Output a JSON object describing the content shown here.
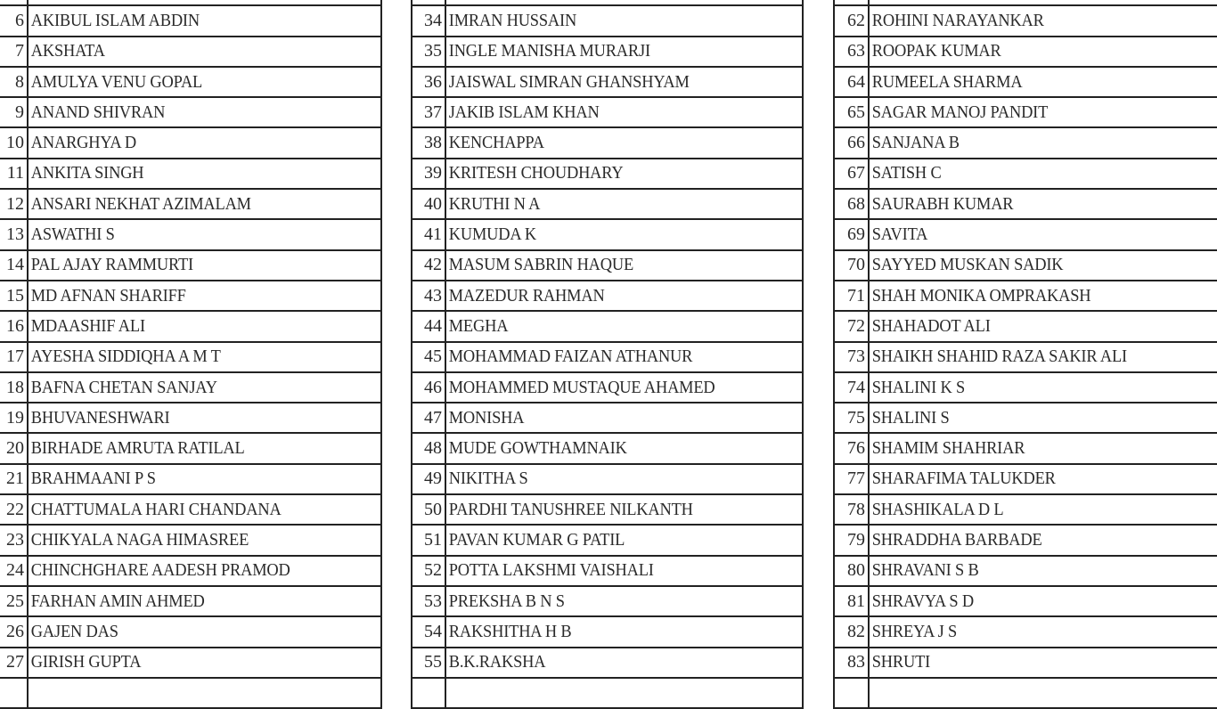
{
  "tables": [
    {
      "rows": [
        {
          "no": "",
          "name": ""
        },
        {
          "no": "6",
          "name": "AKIBUL ISLAM ABDIN"
        },
        {
          "no": "7",
          "name": "AKSHATA"
        },
        {
          "no": "8",
          "name": "AMULYA VENU GOPAL"
        },
        {
          "no": "9",
          "name": "ANAND SHIVRAN"
        },
        {
          "no": "10",
          "name": "ANARGHYA D"
        },
        {
          "no": "11",
          "name": "ANKITA SINGH"
        },
        {
          "no": "12",
          "name": "ANSARI NEKHAT AZIMALAM"
        },
        {
          "no": "13",
          "name": "ASWATHI S"
        },
        {
          "no": "14",
          "name": "PAL AJAY RAMMURTI"
        },
        {
          "no": "15",
          "name": "MD AFNAN SHARIFF"
        },
        {
          "no": "16",
          "name": "MDAASHIF ALI"
        },
        {
          "no": "17",
          "name": "AYESHA SIDDIQHA A M T"
        },
        {
          "no": "18",
          "name": "BAFNA CHETAN SANJAY"
        },
        {
          "no": "19",
          "name": "BHUVANESHWARI"
        },
        {
          "no": "20",
          "name": "BIRHADE AMRUTA RATILAL"
        },
        {
          "no": "21",
          "name": "BRAHMAANI P S"
        },
        {
          "no": "22",
          "name": "CHATTUMALA HARI CHANDANA"
        },
        {
          "no": "23",
          "name": "CHIKYALA NAGA HIMASREE"
        },
        {
          "no": "24",
          "name": "CHINCHGHARE AADESH PRAMOD"
        },
        {
          "no": "25",
          "name": "FARHAN AMIN AHMED"
        },
        {
          "no": "26",
          "name": "GAJEN DAS"
        },
        {
          "no": "27",
          "name": "GIRISH GUPTA"
        },
        {
          "no": "",
          "name": ""
        }
      ]
    },
    {
      "rows": [
        {
          "no": "",
          "name": ""
        },
        {
          "no": "34",
          "name": "IMRAN HUSSAIN"
        },
        {
          "no": "35",
          "name": "INGLE MANISHA MURARJI"
        },
        {
          "no": "36",
          "name": "JAISWAL SIMRAN GHANSHYAM"
        },
        {
          "no": "37",
          "name": "JAKIB ISLAM KHAN"
        },
        {
          "no": "38",
          "name": "KENCHAPPA"
        },
        {
          "no": "39",
          "name": "KRITESH CHOUDHARY"
        },
        {
          "no": "40",
          "name": "KRUTHI N A"
        },
        {
          "no": "41",
          "name": "KUMUDA K"
        },
        {
          "no": "42",
          "name": "MASUM SABRIN HAQUE"
        },
        {
          "no": "43",
          "name": "MAZEDUR RAHMAN"
        },
        {
          "no": "44",
          "name": "MEGHA"
        },
        {
          "no": "45",
          "name": "MOHAMMAD FAIZAN ATHANUR"
        },
        {
          "no": "46",
          "name": "MOHAMMED MUSTAQUE AHAMED"
        },
        {
          "no": "47",
          "name": "MONISHA"
        },
        {
          "no": "48",
          "name": "MUDE GOWTHAMNAIK"
        },
        {
          "no": "49",
          "name": "NIKITHA S"
        },
        {
          "no": "50",
          "name": "PARDHI TANUSHREE NILKANTH"
        },
        {
          "no": "51",
          "name": "PAVAN KUMAR G PATIL"
        },
        {
          "no": "52",
          "name": "POTTA LAKSHMI VAISHALI"
        },
        {
          "no": "53",
          "name": "PREKSHA B N S"
        },
        {
          "no": "54",
          "name": "RAKSHITHA H B"
        },
        {
          "no": "55",
          "name": "B.K.RAKSHA"
        },
        {
          "no": "",
          "name": ""
        }
      ]
    },
    {
      "rows": [
        {
          "no": "",
          "name": ""
        },
        {
          "no": "62",
          "name": "ROHINI NARAYANKAR"
        },
        {
          "no": "63",
          "name": "ROOPAK KUMAR"
        },
        {
          "no": "64",
          "name": "RUMEELA SHARMA"
        },
        {
          "no": "65",
          "name": "SAGAR MANOJ PANDIT"
        },
        {
          "no": "66",
          "name": "SANJANA B"
        },
        {
          "no": "67",
          "name": "SATISH C"
        },
        {
          "no": "68",
          "name": "SAURABH KUMAR"
        },
        {
          "no": "69",
          "name": "SAVITA"
        },
        {
          "no": "70",
          "name": "SAYYED MUSKAN SADIK"
        },
        {
          "no": "71",
          "name": "SHAH MONIKA OMPRAKASH"
        },
        {
          "no": "72",
          "name": "SHAHADOT ALI"
        },
        {
          "no": "73",
          "name": "SHAIKH SHAHID RAZA SAKIR ALI"
        },
        {
          "no": "74",
          "name": "SHALINI K S"
        },
        {
          "no": "75",
          "name": "SHALINI S"
        },
        {
          "no": "76",
          "name": "SHAMIM SHAHRIAR"
        },
        {
          "no": "77",
          "name": "SHARAFIMA TALUKDER"
        },
        {
          "no": "78",
          "name": "SHASHIKALA D L"
        },
        {
          "no": "79",
          "name": "SHRADDHA BARBADE"
        },
        {
          "no": "80",
          "name": "SHRAVANI S B"
        },
        {
          "no": "81",
          "name": "SHRAVYA S D"
        },
        {
          "no": "82",
          "name": "SHREYA J S"
        },
        {
          "no": "83",
          "name": "SHRUTI"
        },
        {
          "no": "",
          "name": ""
        }
      ]
    }
  ]
}
